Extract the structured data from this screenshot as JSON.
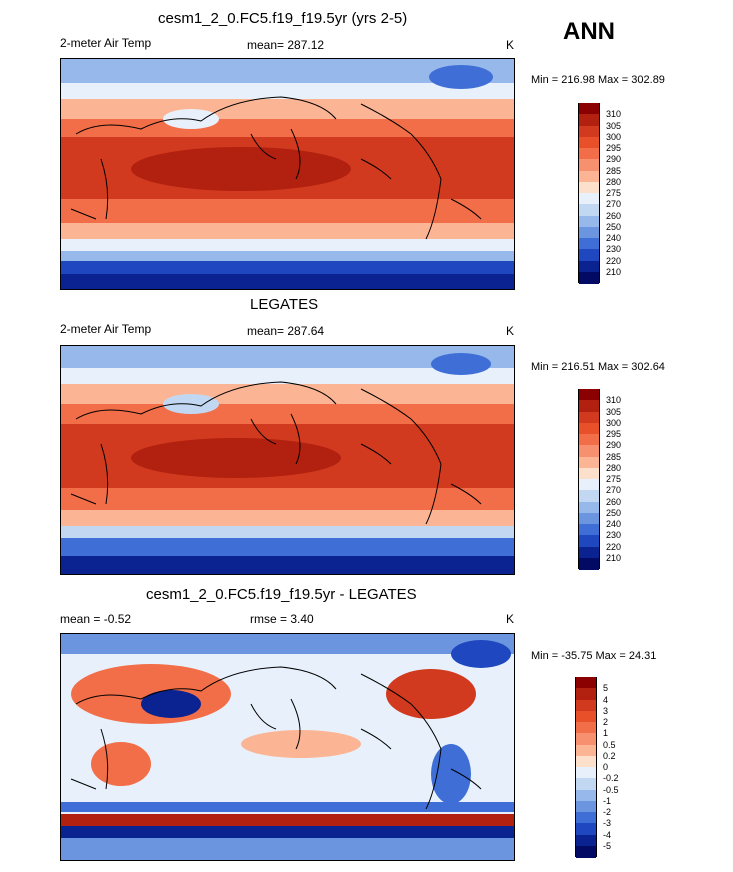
{
  "season": "ANN",
  "panels": [
    {
      "title": "cesm1_2_0.FC5.f19_f19.5yr (yrs 2-5)",
      "left_label": "2-meter Air Temp",
      "center_label": "mean= 287.12",
      "units": "K",
      "minmax": "Min = 216.98 Max = 302.89"
    },
    {
      "title": "LEGATES",
      "left_label": "2-meter Air Temp",
      "center_label": "mean= 287.64",
      "units": "K",
      "minmax": "Min = 216.51 Max = 302.64"
    },
    {
      "title": "cesm1_2_0.FC5.f19_f19.5yr - LEGATES",
      "left_label": "mean =  -0.52",
      "center_label": "rmse =   3.40",
      "units": "K",
      "minmax": "Min = -35.75 Max =  24.31"
    }
  ],
  "chart_data": [
    {
      "type": "heatmap",
      "title": "cesm1_2_0.FC5.f19_f19.5yr (yrs 2-5)",
      "variable": "2-meter Air Temp",
      "units": "K",
      "mean": 287.12,
      "min": 216.98,
      "max": 302.89,
      "levels": [
        "310",
        "305",
        "300",
        "295",
        "290",
        "285",
        "280",
        "275",
        "270",
        "260",
        "250",
        "240",
        "230",
        "220",
        "210"
      ],
      "colors": [
        "#8b0000",
        "#b2200f",
        "#d13a1e",
        "#e8502a",
        "#f26e48",
        "#f7906e",
        "#fbb595",
        "#fde0cc",
        "#e8f1fb",
        "#c2d8f2",
        "#97b8ea",
        "#6c95e0",
        "#3f6fd6",
        "#1f48c0",
        "#0a2391",
        "#020a63"
      ],
      "xlim": [
        0,
        360
      ],
      "ylim": [
        -90,
        90
      ]
    },
    {
      "type": "heatmap",
      "title": "LEGATES",
      "variable": "2-meter Air Temp",
      "units": "K",
      "mean": 287.64,
      "min": 216.51,
      "max": 302.64,
      "levels": [
        "310",
        "305",
        "300",
        "295",
        "290",
        "285",
        "280",
        "275",
        "270",
        "260",
        "250",
        "240",
        "230",
        "220",
        "210"
      ],
      "colors": [
        "#8b0000",
        "#b2200f",
        "#d13a1e",
        "#e8502a",
        "#f26e48",
        "#f7906e",
        "#fbb595",
        "#fde0cc",
        "#e8f1fb",
        "#c2d8f2",
        "#97b8ea",
        "#6c95e0",
        "#3f6fd6",
        "#1f48c0",
        "#0a2391",
        "#020a63"
      ],
      "xlim": [
        0,
        360
      ],
      "ylim": [
        -90,
        90
      ]
    },
    {
      "type": "heatmap",
      "title": "cesm1_2_0.FC5.f19_f19.5yr - LEGATES",
      "units": "K",
      "mean": -0.52,
      "rmse": 3.4,
      "min": -35.75,
      "max": 24.31,
      "levels": [
        "5",
        "4",
        "3",
        "2",
        "1",
        "0.5",
        "0.2",
        "0",
        "-0.2",
        "-0.5",
        "-1",
        "-2",
        "-3",
        "-4",
        "-5"
      ],
      "colors": [
        "#8b0000",
        "#b2200f",
        "#d13a1e",
        "#e8502a",
        "#f26e48",
        "#f7906e",
        "#fbb595",
        "#fde0cc",
        "#e8f1fb",
        "#c2d8f2",
        "#97b8ea",
        "#6c95e0",
        "#3f6fd6",
        "#1f48c0",
        "#0a2391",
        "#020a63"
      ],
      "xlim": [
        0,
        360
      ],
      "ylim": [
        -90,
        90
      ]
    }
  ]
}
